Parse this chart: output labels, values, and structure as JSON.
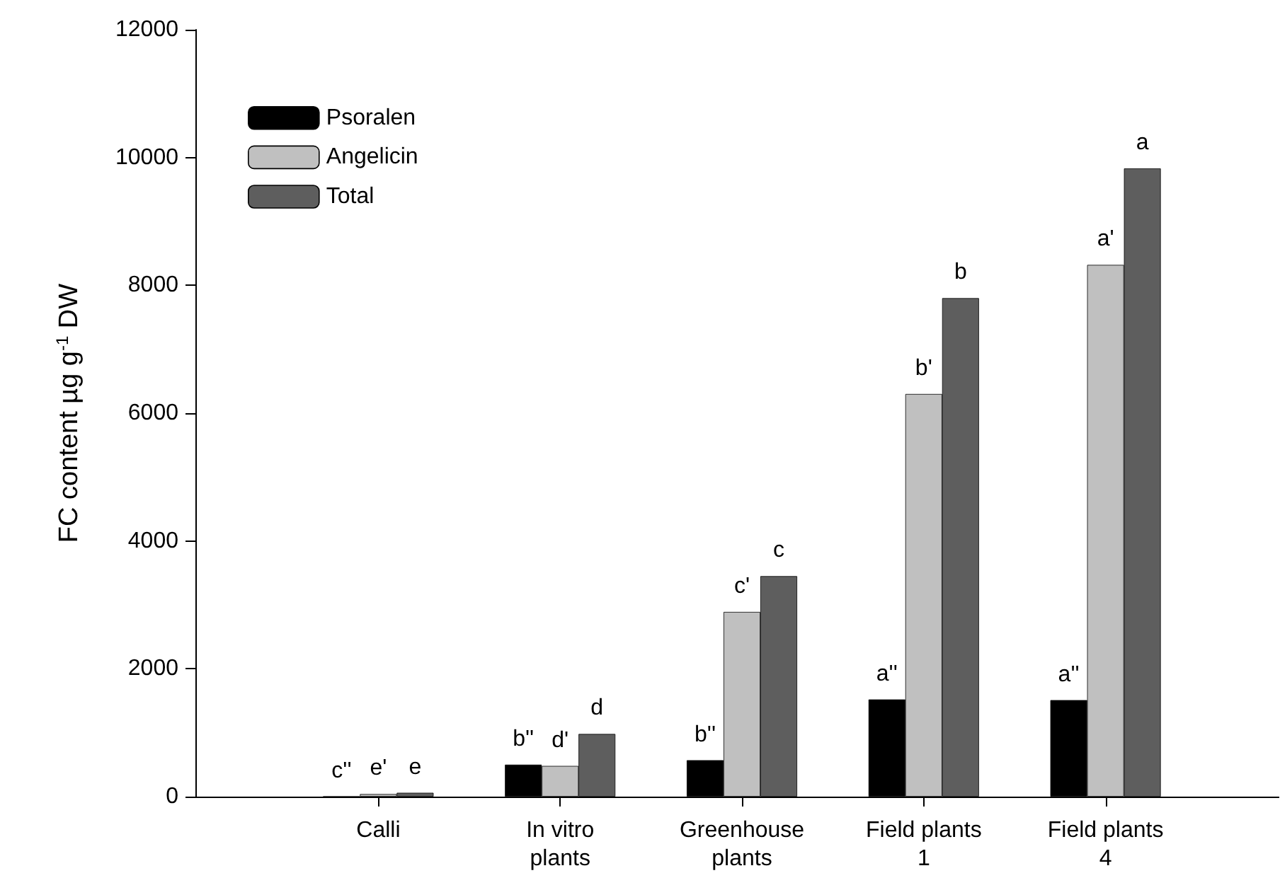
{
  "chart_data": {
    "type": "bar",
    "ylabel": "FC content µg g$^{-1}$ DW",
    "categories": [
      "Calli",
      "In vitro plants",
      "Greenhouse plants",
      "Field plants 1",
      "Field plants 4"
    ],
    "series": [
      {
        "name": "Psoralen",
        "color": "#000000",
        "values": [
          0,
          500,
          570,
          1520,
          1510
        ],
        "value_labels": [
          "c''",
          "b''",
          "b''",
          "a''",
          "a''"
        ]
      },
      {
        "name": "Angelicin",
        "color": "#c0c0c0",
        "values": [
          40,
          480,
          2890,
          6300,
          8320
        ],
        "value_labels": [
          "e'",
          "d'",
          "c'",
          "b'",
          "a'"
        ]
      },
      {
        "name": "Total",
        "color": "#5e5e5e",
        "values": [
          60,
          980,
          3450,
          7800,
          9830
        ],
        "value_labels": [
          "e",
          "d",
          "c",
          "b",
          "a"
        ]
      }
    ],
    "ylim": [
      0,
      12000
    ],
    "yticks": [
      0,
      2000,
      4000,
      6000,
      8000,
      10000,
      12000
    ],
    "grid": false,
    "legend": "top left"
  }
}
